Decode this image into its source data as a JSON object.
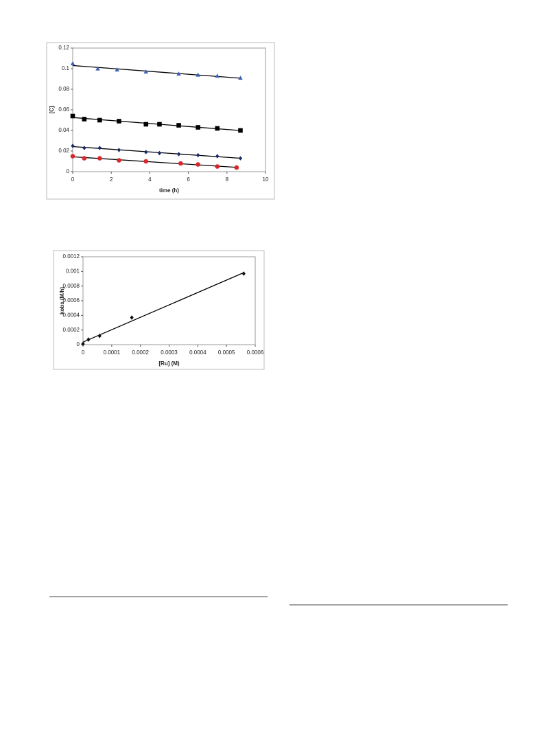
{
  "chart_data": [
    {
      "type": "scatter",
      "trendline": true,
      "xlabel": "time (h)",
      "ylabel": "[C]",
      "xlim": [
        0,
        10
      ],
      "xticks": [
        0,
        2,
        4,
        6,
        8,
        10
      ],
      "ylim": [
        0,
        0.12
      ],
      "yticks": [
        0,
        0.02,
        0.04,
        0.06,
        0.08,
        0.1,
        0.12
      ],
      "series": [
        {
          "color": "#3b5fb5",
          "marker": "triangle",
          "x": [
            0,
            1.3,
            2.3,
            3.8,
            5.5,
            6.5,
            7.5,
            8.7
          ],
          "values": [
            0.105,
            0.1,
            0.099,
            0.097,
            0.095,
            0.094,
            0.093,
            0.091
          ]
        },
        {
          "color": "#000000",
          "marker": "square",
          "x": [
            0,
            0.6,
            1.4,
            2.4,
            3.8,
            4.5,
            5.5,
            6.5,
            7.5,
            8.7
          ],
          "values": [
            0.054,
            0.051,
            0.05,
            0.049,
            0.046,
            0.046,
            0.045,
            0.043,
            0.042,
            0.04
          ]
        },
        {
          "color": "#1a2a6c",
          "marker": "diamond",
          "x": [
            0,
            0.6,
            1.4,
            2.4,
            3.8,
            4.5,
            5.5,
            6.5,
            7.5,
            8.7
          ],
          "values": [
            0.025,
            0.023,
            0.023,
            0.021,
            0.019,
            0.018,
            0.017,
            0.016,
            0.015,
            0.013
          ]
        },
        {
          "color": "#d9262b",
          "marker": "circle",
          "x": [
            0,
            0.6,
            1.4,
            2.4,
            3.8,
            5.6,
            6.5,
            7.5,
            8.5
          ],
          "values": [
            0.015,
            0.013,
            0.013,
            0.011,
            0.01,
            0.008,
            0.007,
            0.005,
            0.004
          ]
        }
      ]
    },
    {
      "type": "scatter",
      "trendline": true,
      "xlabel": "[Ru] (M)",
      "ylabel": "kobs (M/h)",
      "xlim": [
        0,
        0.0006
      ],
      "xticks": [
        0,
        0.0001,
        0.0002,
        0.0003,
        0.0004,
        0.0005,
        0.0006
      ],
      "ylim": [
        0,
        0.0012
      ],
      "yticks": [
        0,
        0.0002,
        0.0004,
        0.0006,
        0.0008,
        0.001,
        0.0012
      ],
      "series": [
        {
          "color": "#111111",
          "marker": "diamond",
          "x": [
            0,
            1.9e-05,
            5.8e-05,
            0.00017,
            0.00056
          ],
          "values": [
            1e-05,
            7e-05,
            0.00012,
            0.00037,
            0.00097
          ]
        }
      ]
    }
  ]
}
